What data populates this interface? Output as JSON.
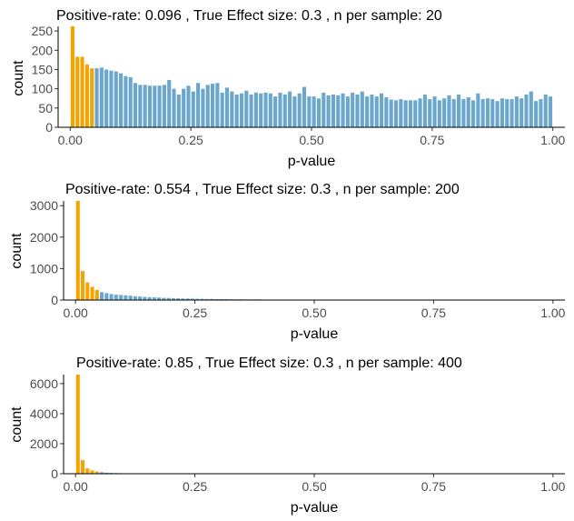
{
  "chart_data": [
    {
      "type": "bar",
      "title": "Positive-rate:  0.096 , True Effect size:  0.3 , n per sample:  20",
      "xlabel": "p-value",
      "ylabel": "count",
      "xlim": [
        -0.025,
        1.025
      ],
      "ylim": [
        0,
        262
      ],
      "xticks": [
        "0.00",
        "0.25",
        "0.50",
        "0.75",
        "1.00"
      ],
      "yticks": [
        "0",
        "50",
        "100",
        "150",
        "200",
        "250"
      ],
      "bin_width": 0.01,
      "significant_threshold": 0.05,
      "significant_color": "#F5A300",
      "other_color": "#6BA6CD",
      "values": [
        262,
        183,
        183,
        163,
        153,
        153,
        155,
        150,
        147,
        145,
        140,
        133,
        130,
        115,
        110,
        110,
        108,
        108,
        108,
        110,
        123,
        100,
        85,
        100,
        108,
        93,
        115,
        100,
        110,
        113,
        115,
        90,
        103,
        93,
        85,
        88,
        95,
        85,
        90,
        88,
        90,
        88,
        80,
        90,
        85,
        93,
        80,
        88,
        105,
        80,
        80,
        75,
        90,
        83,
        85,
        83,
        88,
        80,
        90,
        85,
        93,
        80,
        85,
        80,
        88,
        78,
        72,
        70,
        73,
        70,
        70,
        70,
        75,
        85,
        73,
        80,
        70,
        75,
        83,
        73,
        85,
        73,
        78,
        70,
        88,
        73,
        75,
        73,
        68,
        75,
        73,
        73,
        80,
        75,
        85,
        93,
        68,
        73,
        85,
        80
      ]
    },
    {
      "type": "bar",
      "title": "Positive-rate:  0.554 , True Effect size:  0.3 , n per sample:  200",
      "xlabel": "p-value",
      "ylabel": "count",
      "xlim": [
        -0.025,
        1.025
      ],
      "ylim": [
        0,
        3150
      ],
      "xticks": [
        "0.00",
        "0.25",
        "0.50",
        "0.75",
        "1.00"
      ],
      "yticks": [
        "0",
        "1000",
        "2000",
        "3000"
      ],
      "bin_width": 0.01,
      "significant_threshold": 0.05,
      "significant_color": "#F5A300",
      "other_color": "#6BA6CD",
      "values": [
        3150,
        920,
        560,
        420,
        320,
        250,
        220,
        190,
        170,
        160,
        150,
        140,
        120,
        110,
        100,
        90,
        85,
        80,
        70,
        65,
        60,
        55,
        50,
        50,
        45,
        40,
        40,
        35,
        35,
        30,
        30,
        30,
        25,
        25,
        25,
        20,
        20,
        20,
        20,
        15,
        15,
        15,
        15,
        12,
        12,
        12,
        10,
        10,
        10,
        10,
        10,
        8,
        8,
        8,
        8,
        8,
        8,
        6,
        6,
        6,
        6,
        6,
        6,
        5,
        5,
        5,
        5,
        5,
        5,
        4,
        4,
        4,
        4,
        4,
        4,
        4,
        3,
        3,
        3,
        3,
        3,
        3,
        3,
        3,
        3,
        3,
        2,
        2,
        2,
        2,
        2,
        2,
        2,
        2,
        2,
        2,
        2,
        2,
        2,
        2
      ]
    },
    {
      "type": "bar",
      "title": "Positive-rate:  0.85 , True Effect size:  0.3 , n per sample:  400",
      "xlabel": "p-value",
      "ylabel": "count",
      "xlim": [
        -0.025,
        1.025
      ],
      "ylim": [
        0,
        6600
      ],
      "xticks": [
        "0.00",
        "0.25",
        "0.50",
        "0.75",
        "1.00"
      ],
      "yticks": [
        "0",
        "2000",
        "4000",
        "6000"
      ],
      "bin_width": 0.01,
      "significant_threshold": 0.05,
      "significant_color": "#F5A300",
      "other_color": "#6BA6CD",
      "values": [
        6600,
        900,
        350,
        220,
        150,
        100,
        70,
        55,
        45,
        35,
        25,
        20,
        15,
        12,
        10,
        8,
        6,
        5,
        4,
        3,
        3,
        2,
        2,
        2,
        1,
        1,
        1,
        1,
        1,
        1,
        0,
        0,
        0,
        0,
        0,
        0,
        0,
        0,
        0,
        0,
        0,
        0,
        0,
        0,
        0,
        0,
        0,
        0,
        0,
        0,
        0,
        0,
        0,
        0,
        0,
        0,
        0,
        0,
        0,
        0,
        0,
        0,
        0,
        0,
        0,
        0,
        0,
        0,
        0,
        0,
        0,
        0,
        0,
        0,
        0,
        0,
        0,
        0,
        0,
        0,
        0,
        0,
        0,
        0,
        0,
        0,
        0,
        0,
        0,
        0,
        0,
        0,
        0,
        0,
        0,
        0,
        0,
        0,
        0,
        0
      ]
    }
  ]
}
